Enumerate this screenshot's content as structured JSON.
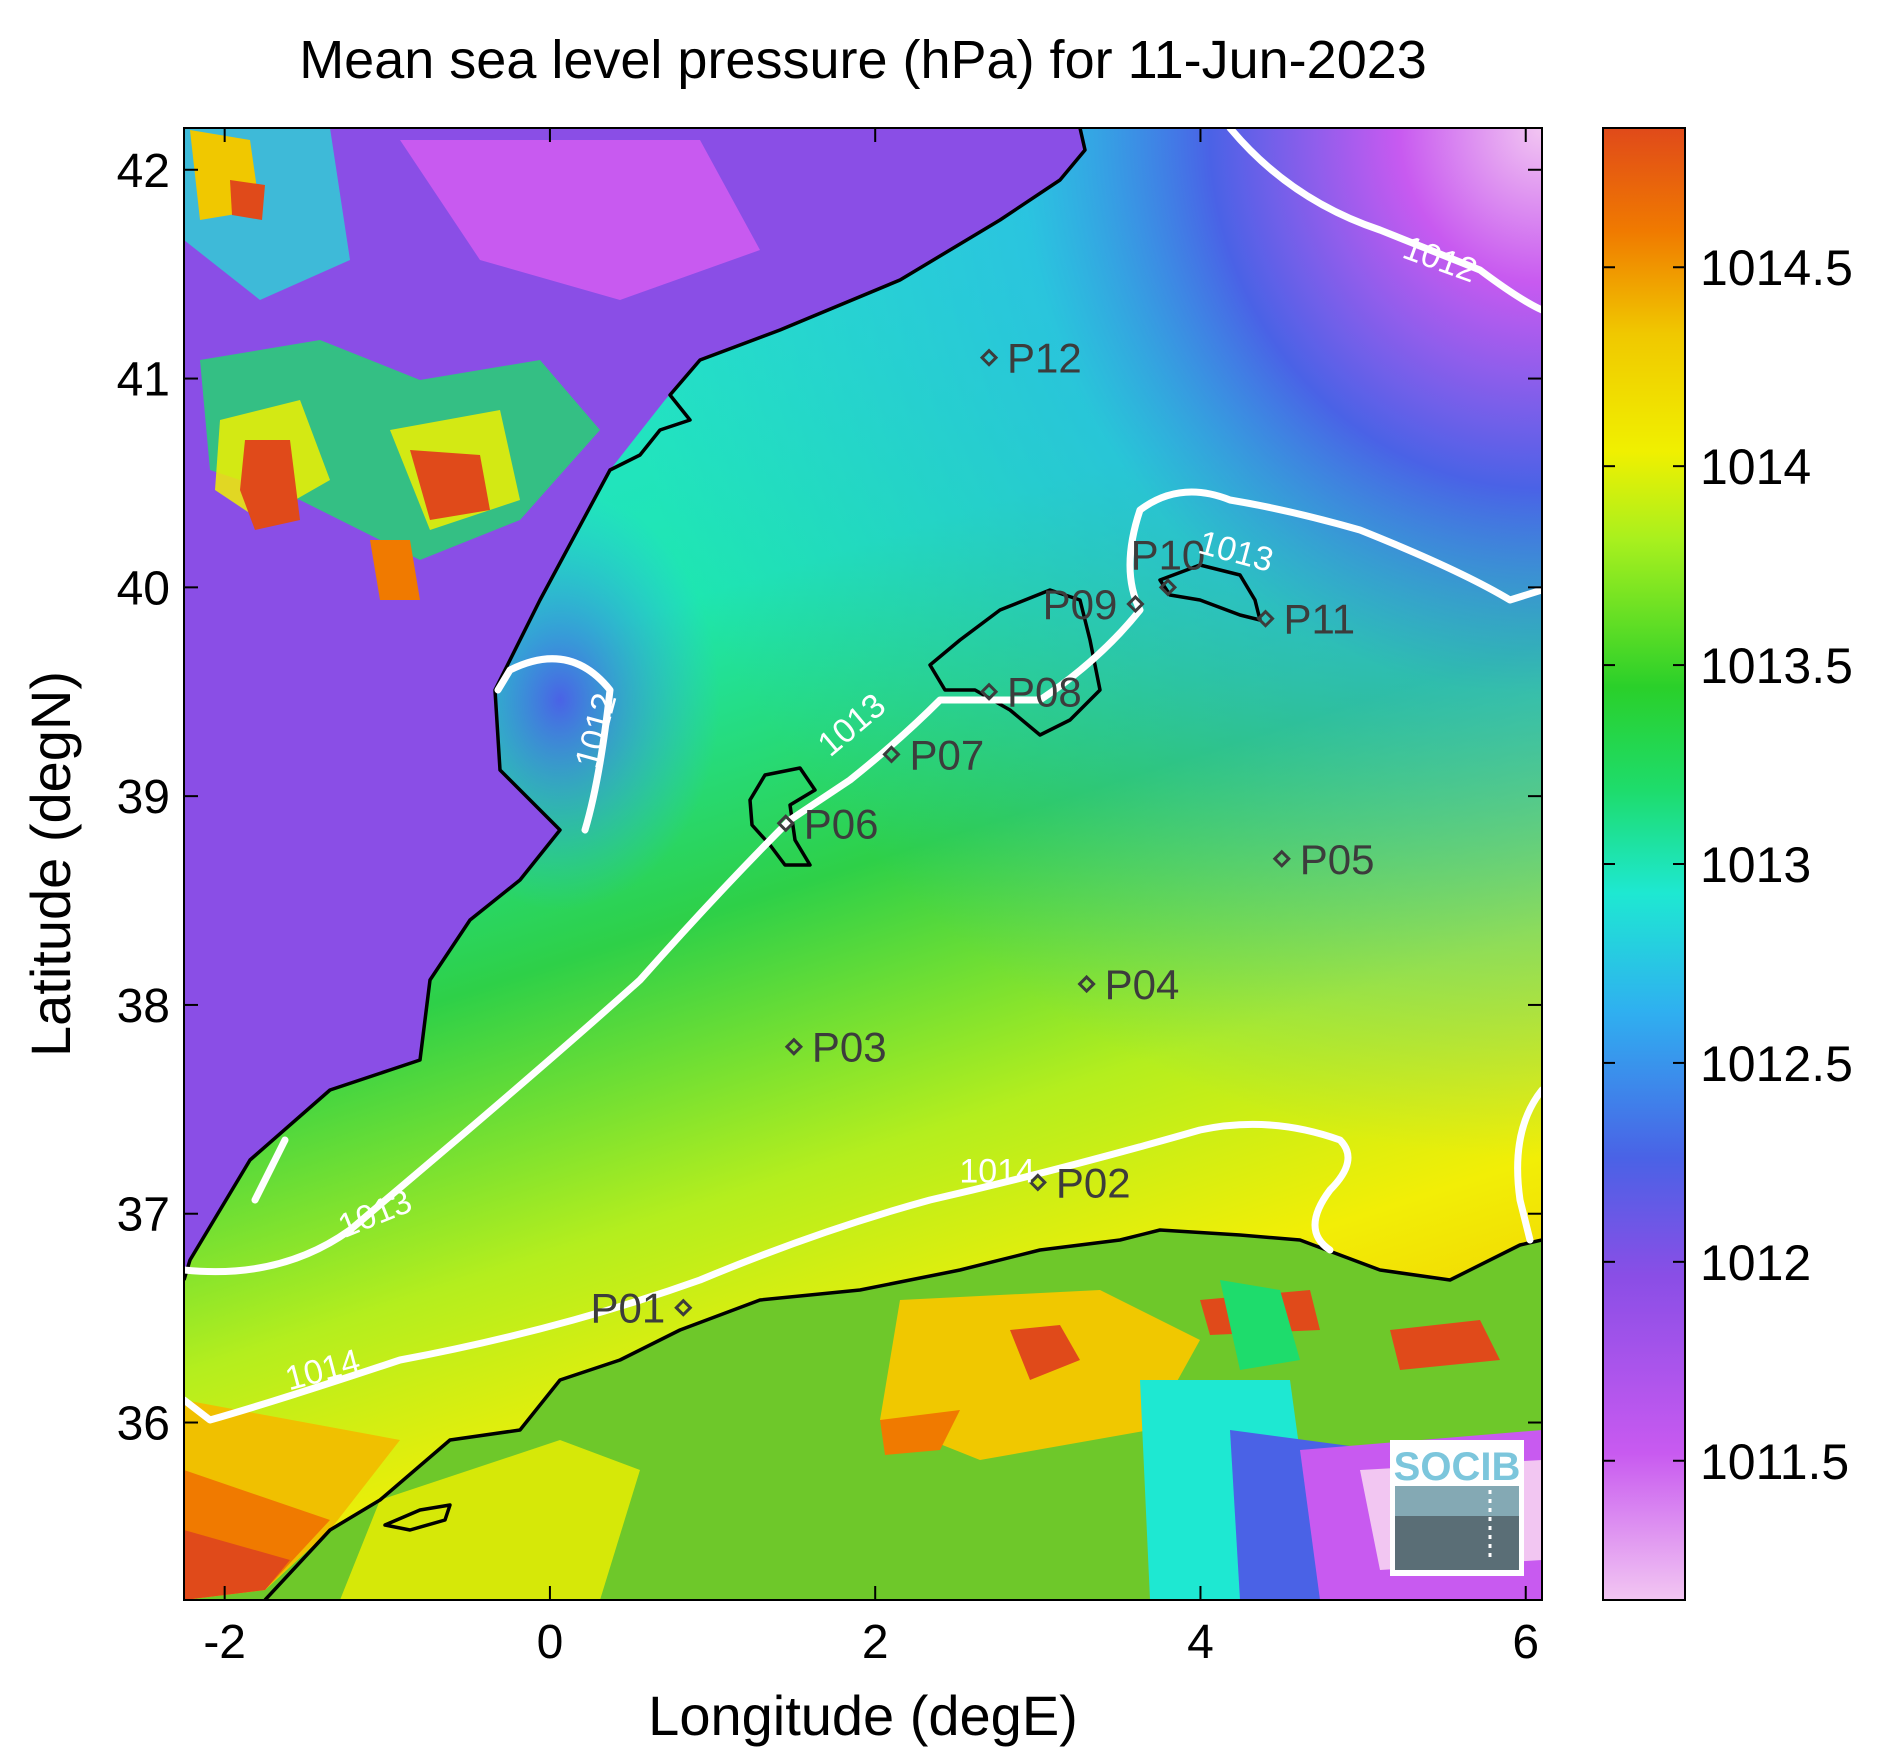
{
  "title": "Mean sea level pressure (hPa) for 11-Jun-2023",
  "x_axis": {
    "label": "Longitude (degE)",
    "range": [
      -2.25,
      6.1
    ],
    "ticks": [
      {
        "v": -2,
        "t": "-2"
      },
      {
        "v": 0,
        "t": "0"
      },
      {
        "v": 2,
        "t": "2"
      },
      {
        "v": 4,
        "t": "4"
      },
      {
        "v": 6,
        "t": "6"
      }
    ]
  },
  "y_axis": {
    "label": "Latitude (degN)",
    "range": [
      35.15,
      42.2
    ],
    "ticks": [
      {
        "v": 36,
        "t": "36"
      },
      {
        "v": 37,
        "t": "37"
      },
      {
        "v": 38,
        "t": "38"
      },
      {
        "v": 39,
        "t": "39"
      },
      {
        "v": 40,
        "t": "40"
      },
      {
        "v": 41,
        "t": "41"
      },
      {
        "v": 42,
        "t": "42"
      }
    ]
  },
  "colorbar": {
    "range": [
      1011.15,
      1014.85
    ],
    "ticks": [
      {
        "v": 1011.5,
        "t": "1011.5"
      },
      {
        "v": 1012,
        "t": "1012"
      },
      {
        "v": 1012.5,
        "t": "1012.5"
      },
      {
        "v": 1013,
        "t": "1013"
      },
      {
        "v": 1013.5,
        "t": "1013.5"
      },
      {
        "v": 1014,
        "t": "1014"
      },
      {
        "v": 1014.5,
        "t": "1014.5"
      }
    ],
    "colors": [
      "#f2c6f2",
      "#c85af0",
      "#8a4ee6",
      "#4a62e6",
      "#2fb0f0",
      "#1ee8d2",
      "#1edc6c",
      "#2ad02a",
      "#a8f01e",
      "#f0f000",
      "#f0c800",
      "#f07a00",
      "#e04a1a"
    ]
  },
  "stations": [
    {
      "id": "P01",
      "lon": 0.82,
      "lat": 36.55,
      "label_side": "left"
    },
    {
      "id": "P02",
      "lon": 3.0,
      "lat": 37.15,
      "label_side": "right"
    },
    {
      "id": "P03",
      "lon": 1.5,
      "lat": 37.8,
      "label_side": "right"
    },
    {
      "id": "P04",
      "lon": 3.3,
      "lat": 38.1,
      "label_side": "right"
    },
    {
      "id": "P05",
      "lon": 4.5,
      "lat": 38.7,
      "label_side": "right"
    },
    {
      "id": "P06",
      "lon": 1.45,
      "lat": 38.87,
      "label_side": "right"
    },
    {
      "id": "P07",
      "lon": 2.1,
      "lat": 39.2,
      "label_side": "right"
    },
    {
      "id": "P08",
      "lon": 2.7,
      "lat": 39.5,
      "label_side": "right"
    },
    {
      "id": "P09",
      "lon": 3.6,
      "lat": 39.92,
      "label_side": "left"
    },
    {
      "id": "P10",
      "lon": 3.8,
      "lat": 40.0,
      "label_side": "above"
    },
    {
      "id": "P11",
      "lon": 4.4,
      "lat": 39.85,
      "label_side": "right"
    },
    {
      "id": "P12",
      "lon": 2.7,
      "lat": 41.1,
      "label_side": "right"
    }
  ],
  "contour_labels": [
    {
      "text": "1012",
      "lon": 5.45,
      "lat": 41.52,
      "angle": 20
    },
    {
      "text": "1012",
      "lon": 0.35,
      "lat": 39.3,
      "angle": -75
    },
    {
      "text": "1013",
      "lon": 4.2,
      "lat": 40.12,
      "angle": 15
    },
    {
      "text": "1013",
      "lon": 1.9,
      "lat": 39.3,
      "angle": -40
    },
    {
      "text": "1013",
      "lon": -1.05,
      "lat": 36.95,
      "angle": -22
    },
    {
      "text": "1014",
      "lon": -1.38,
      "lat": 36.2,
      "angle": -15
    },
    {
      "text": "1014",
      "lon": 2.75,
      "lat": 37.15,
      "angle": 0
    }
  ],
  "logo": {
    "text": "SOCIB"
  }
}
